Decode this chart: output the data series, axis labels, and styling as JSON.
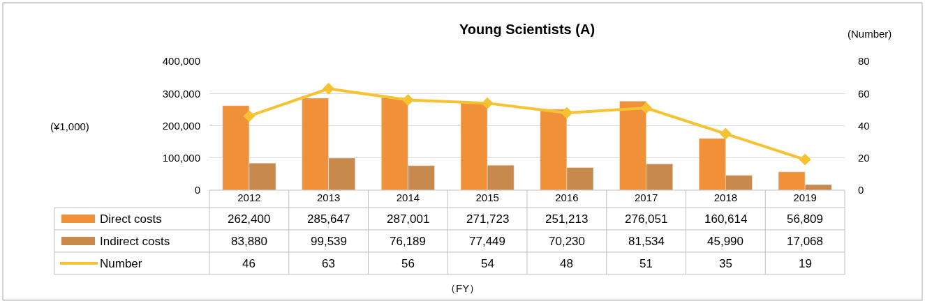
{
  "chart_data": {
    "type": "bar",
    "title": "Young Scientists (A)",
    "y2label": "(Number)",
    "annotations": [
      "(¥1,000)",
      "（FY）"
    ],
    "categories": [
      "2012",
      "2013",
      "2014",
      "2015",
      "2016",
      "2017",
      "2018",
      "2019"
    ],
    "series": [
      {
        "name": "Direct costs",
        "color": "#f0913a",
        "values": [
          262400,
          285647,
          287001,
          271723,
          251213,
          276051,
          160614,
          56809
        ],
        "value_labels": [
          "262,400",
          "285,647",
          "287,001",
          "271,723",
          "251,213",
          "276,051",
          "160,614",
          "56,809"
        ]
      },
      {
        "name": "Indirect costs",
        "color": "#c8894c",
        "values": [
          83880,
          99539,
          76189,
          77449,
          70230,
          81534,
          45990,
          17068
        ],
        "value_labels": [
          "83,880",
          "99,539",
          "76,189",
          "77,449",
          "70,230",
          "81,534",
          "45,990",
          "17,068"
        ]
      },
      {
        "name": "Number",
        "type": "line",
        "axis": "y2",
        "color": "#f7c232",
        "marker": "diamond",
        "values": [
          46,
          63,
          56,
          54,
          48,
          51,
          35,
          19
        ],
        "value_labels": [
          "46",
          "63",
          "56",
          "54",
          "48",
          "51",
          "35",
          "19"
        ]
      }
    ],
    "ylim": [
      0,
      400000
    ],
    "yticks": [
      {
        "value": 0,
        "label": "0"
      },
      {
        "value": 100000,
        "label": "100,000"
      },
      {
        "value": 200000,
        "label": "200,000"
      },
      {
        "value": 300000,
        "label": "300,000"
      },
      {
        "value": 400000,
        "label": "400,000"
      }
    ],
    "y2lim": [
      0,
      80
    ],
    "y2ticks": [
      0,
      20,
      40,
      60,
      80
    ],
    "grid": "y",
    "legend": "bottom"
  }
}
